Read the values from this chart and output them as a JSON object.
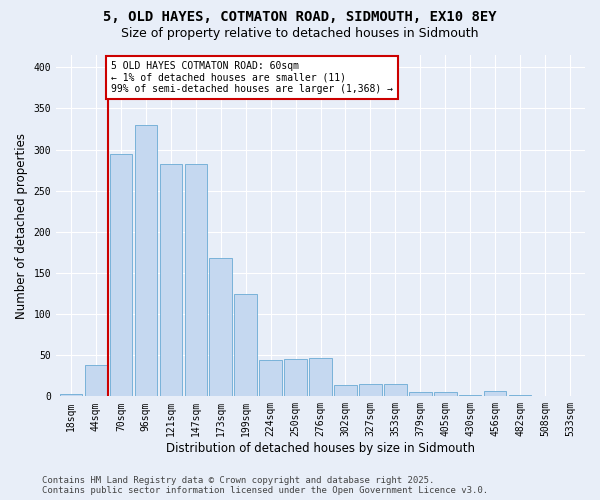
{
  "title_line1": "5, OLD HAYES, COTMATON ROAD, SIDMOUTH, EX10 8EY",
  "title_line2": "Size of property relative to detached houses in Sidmouth",
  "xlabel": "Distribution of detached houses by size in Sidmouth",
  "ylabel": "Number of detached properties",
  "bar_color": "#c5d8f0",
  "bar_edge_color": "#6aaad4",
  "background_color": "#e8eef8",
  "grid_color": "#d0d8e8",
  "annotation_box_color": "#cc0000",
  "annotation_text": "5 OLD HAYES COTMATON ROAD: 60sqm\n← 1% of detached houses are smaller (11)\n99% of semi-detached houses are larger (1,368) →",
  "vline_x": 1.5,
  "vline_color": "#cc0000",
  "categories": [
    "18sqm",
    "44sqm",
    "70sqm",
    "96sqm",
    "121sqm",
    "147sqm",
    "173sqm",
    "199sqm",
    "224sqm",
    "250sqm",
    "276sqm",
    "302sqm",
    "327sqm",
    "353sqm",
    "379sqm",
    "405sqm",
    "430sqm",
    "456sqm",
    "482sqm",
    "508sqm",
    "533sqm"
  ],
  "values": [
    3,
    38,
    295,
    330,
    282,
    282,
    168,
    125,
    44,
    45,
    46,
    14,
    15,
    15,
    5,
    5,
    2,
    6,
    2,
    1,
    0
  ],
  "ylim": [
    0,
    415
  ],
  "yticks": [
    0,
    50,
    100,
    150,
    200,
    250,
    300,
    350,
    400
  ],
  "footnote": "Contains HM Land Registry data © Crown copyright and database right 2025.\nContains public sector information licensed under the Open Government Licence v3.0.",
  "title_fontsize": 10,
  "subtitle_fontsize": 9,
  "tick_fontsize": 7,
  "label_fontsize": 8.5,
  "annot_fontsize": 7,
  "footnote_fontsize": 6.5
}
